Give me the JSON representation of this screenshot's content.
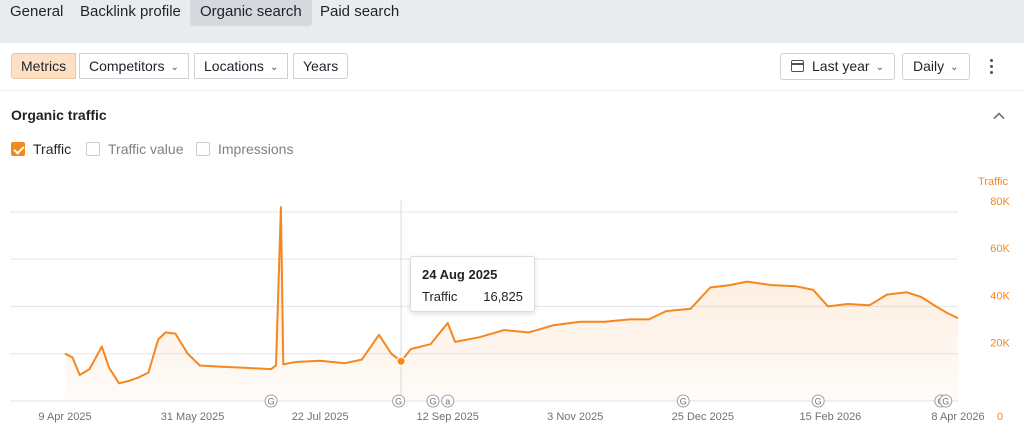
{
  "top_tabs": [
    {
      "label": "General",
      "active": false
    },
    {
      "label": "Backlink profile",
      "active": false
    },
    {
      "label": "Organic search",
      "active": true
    },
    {
      "label": "Paid search",
      "active": false
    }
  ],
  "toolbar": {
    "segments": [
      {
        "label": "Metrics",
        "active": true,
        "dropdown": false
      },
      {
        "label": "Competitors",
        "active": false,
        "dropdown": true
      },
      {
        "label": "Locations",
        "active": false,
        "dropdown": true
      },
      {
        "label": "Years",
        "active": false,
        "dropdown": false
      }
    ],
    "date_range": "Last year",
    "granularity": "Daily",
    "icons": {
      "calendar": "calendar-icon",
      "more": "kebab-menu-icon"
    }
  },
  "panel": {
    "title": "Organic traffic",
    "metrics": [
      {
        "label": "Traffic",
        "checked": true
      },
      {
        "label": "Traffic value",
        "checked": false
      },
      {
        "label": "Impressions",
        "checked": false
      }
    ]
  },
  "chart_data": {
    "type": "area",
    "series": [
      {
        "name": "Traffic",
        "color": "#f5871f",
        "points": [
          [
            "2025-04-09",
            20000
          ],
          [
            "2025-04-12",
            18500
          ],
          [
            "2025-04-15",
            11000
          ],
          [
            "2025-04-19",
            13500
          ],
          [
            "2025-04-24",
            23000
          ],
          [
            "2025-04-27",
            14000
          ],
          [
            "2025-05-01",
            7500
          ],
          [
            "2025-05-05",
            8500
          ],
          [
            "2025-05-09",
            10000
          ],
          [
            "2025-05-13",
            12000
          ],
          [
            "2025-05-17",
            26000
          ],
          [
            "2025-05-20",
            29000
          ],
          [
            "2025-05-24",
            28500
          ],
          [
            "2025-05-29",
            20000
          ],
          [
            "2025-06-03",
            15000
          ],
          [
            "2025-06-12",
            14500
          ],
          [
            "2025-06-22",
            14000
          ],
          [
            "2025-07-02",
            13500
          ],
          [
            "2025-07-04",
            15000
          ],
          [
            "2025-07-06",
            82000
          ],
          [
            "2025-07-07",
            15500
          ],
          [
            "2025-07-12",
            16500
          ],
          [
            "2025-07-22",
            17000
          ],
          [
            "2025-08-01",
            16000
          ],
          [
            "2025-08-08",
            17500
          ],
          [
            "2025-08-15",
            28000
          ],
          [
            "2025-08-20",
            20000
          ],
          [
            "2025-08-24",
            16825
          ],
          [
            "2025-08-28",
            22000
          ],
          [
            "2025-09-05",
            24000
          ],
          [
            "2025-09-12",
            33000
          ],
          [
            "2025-09-15",
            25000
          ],
          [
            "2025-09-25",
            27000
          ],
          [
            "2025-10-05",
            30000
          ],
          [
            "2025-10-15",
            29000
          ],
          [
            "2025-10-25",
            32000
          ],
          [
            "2025-11-05",
            33500
          ],
          [
            "2025-11-15",
            33500
          ],
          [
            "2025-11-25",
            34500
          ],
          [
            "2025-12-03",
            34500
          ],
          [
            "2025-12-10",
            38000
          ],
          [
            "2025-12-20",
            39000
          ],
          [
            "2025-12-28",
            48000
          ],
          [
            "2026-01-05",
            49000
          ],
          [
            "2026-01-12",
            50500
          ],
          [
            "2026-01-22",
            49000
          ],
          [
            "2026-02-01",
            48500
          ],
          [
            "2026-02-08",
            47000
          ],
          [
            "2026-02-14",
            40000
          ],
          [
            "2026-02-22",
            41000
          ],
          [
            "2026-03-03",
            40500
          ],
          [
            "2026-03-10",
            45000
          ],
          [
            "2026-03-18",
            46000
          ],
          [
            "2026-03-24",
            44000
          ],
          [
            "2026-03-30",
            40000
          ],
          [
            "2026-04-04",
            37000
          ],
          [
            "2026-04-08",
            35000
          ]
        ]
      }
    ],
    "x_ticks": [
      "9 Apr 2025",
      "31 May 2025",
      "22 Jul 2025",
      "12 Sep 2025",
      "3 Nov 2025",
      "25 Dec 2025",
      "15 Feb 2026",
      "8 Apr 2026"
    ],
    "x_tick_dates": [
      "2025-04-09",
      "2025-05-31",
      "2025-07-22",
      "2025-09-12",
      "2025-11-03",
      "2025-12-25",
      "2026-02-15",
      "2026-04-08"
    ],
    "y_ticks": [
      "0",
      "20K",
      "40K",
      "60K",
      "80K"
    ],
    "y_tick_values": [
      0,
      20000,
      40000,
      60000,
      80000
    ],
    "ylim": [
      0,
      85000
    ],
    "y_axis_side": "right",
    "ylabel": "Traffic",
    "grid": true,
    "markers": [
      {
        "date": "2025-07-02",
        "label": "G"
      },
      {
        "date": "2025-08-23",
        "label": "G"
      },
      {
        "date": "2025-09-06",
        "label": "G"
      },
      {
        "date": "2025-09-12",
        "label": "a"
      },
      {
        "date": "2025-12-17",
        "label": "G"
      },
      {
        "date": "2026-02-10",
        "label": "G"
      },
      {
        "date": "2026-04-01",
        "label": "G"
      },
      {
        "date": "2026-04-03",
        "label": "G"
      }
    ],
    "hover": {
      "date_label": "24 Aug 2025",
      "date": "2025-08-24",
      "series": "Traffic",
      "value_text": "16,825",
      "value": 16825
    }
  }
}
